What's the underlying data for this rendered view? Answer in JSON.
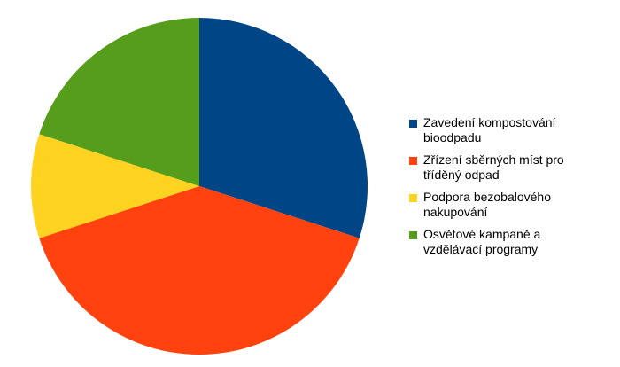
{
  "chart_data": {
    "type": "pie",
    "categories": [
      "Zavedení kompostování bioodpadu",
      "Zřízení sběrných míst pro tříděný odpad",
      "Podpora bezobalového nakupování",
      "Osvětové kampaně a vzdělávací programy"
    ],
    "values": [
      30,
      40,
      10,
      20
    ],
    "colors": [
      "#004586",
      "#ff420e",
      "#ffd320",
      "#579d1c"
    ],
    "legend": "right"
  }
}
